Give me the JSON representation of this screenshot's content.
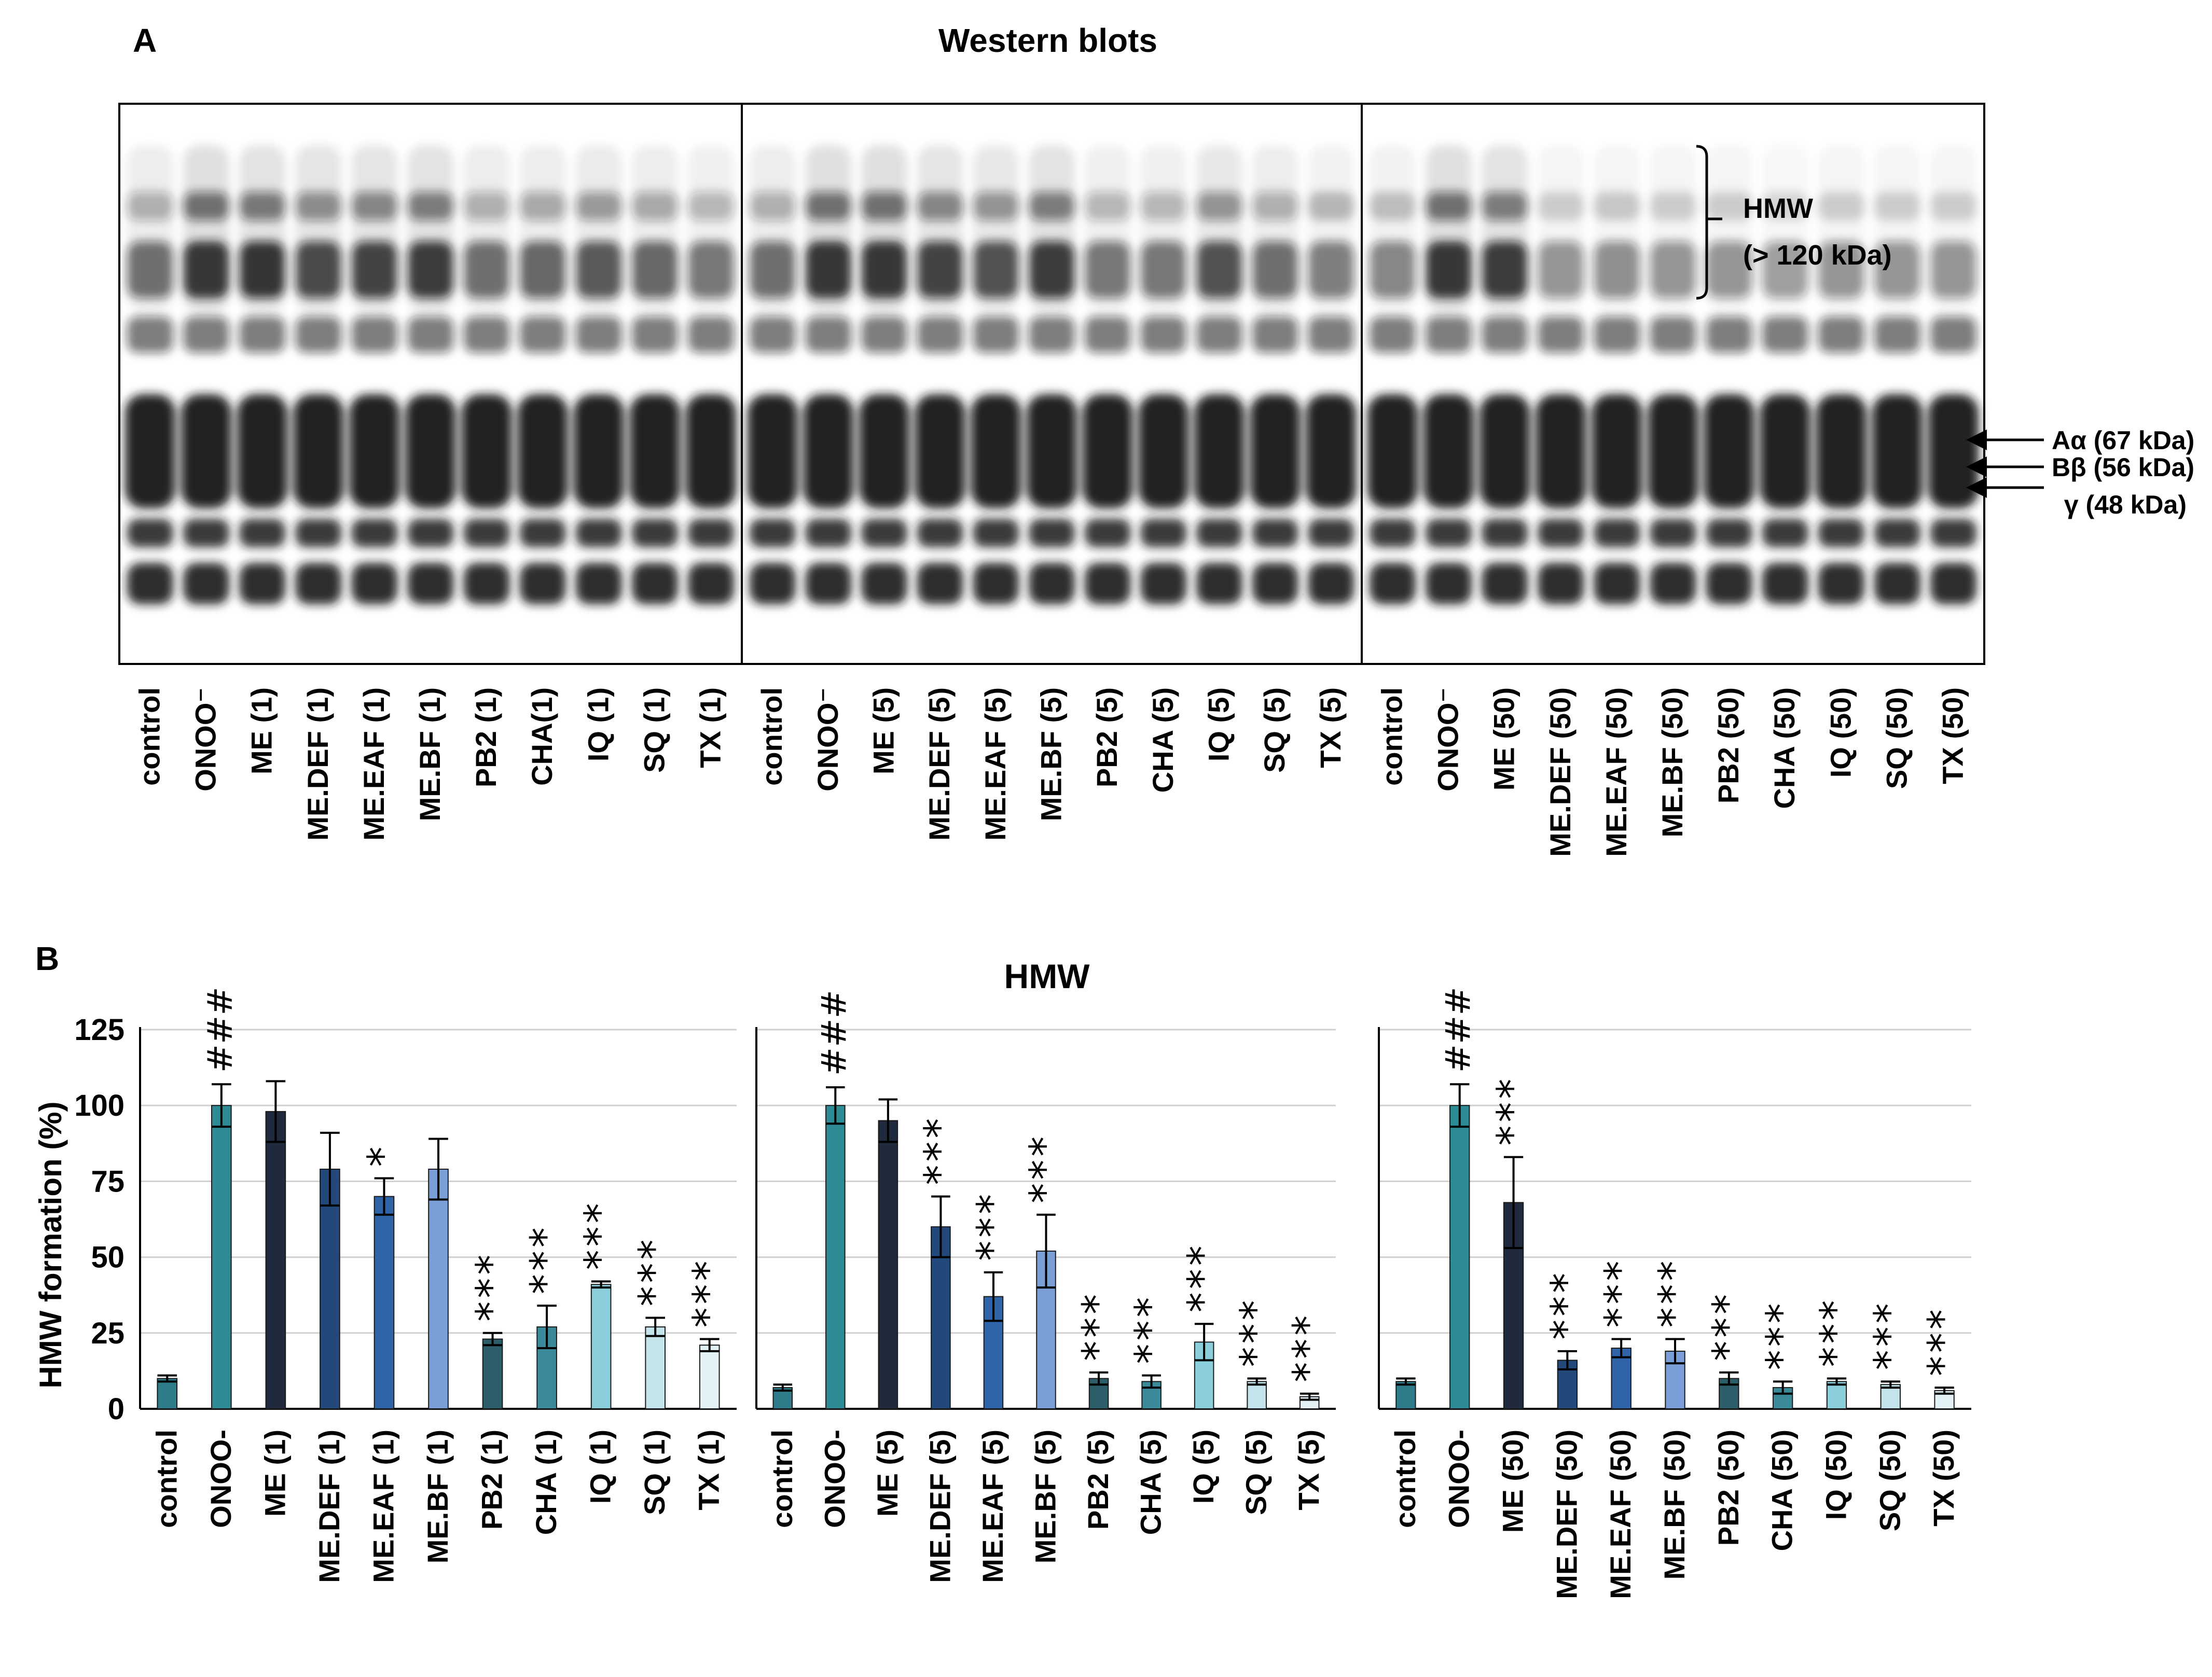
{
  "panel_a": {
    "label": "A",
    "title": "Western blots",
    "hmw_label": "HMW",
    "hmw_range": "(> 120 kDa)",
    "band_labels": [
      "Aα (67 kDa)",
      "Bβ (56 kDa)",
      "γ (48 kDa)"
    ],
    "blots": [
      {
        "lane_labels": [
          "control",
          "ONOO⁻",
          "ME (1)",
          "ME.DEF (1)",
          "ME.EAF (1)",
          "ME.BF (1)",
          "PB2 (1)",
          "CHA(1)",
          "IQ (1)",
          "SQ (1)",
          "TX (1)"
        ],
        "hmw_intensity": [
          0.55,
          1.0,
          0.95,
          0.8,
          0.85,
          0.9,
          0.55,
          0.6,
          0.7,
          0.6,
          0.5
        ]
      },
      {
        "lane_labels": [
          "control",
          "ONOO⁻",
          "ME (5)",
          "ME.DEF (5)",
          "ME.EAF (5)",
          "ME.BF (5)",
          "PB2 (5)",
          "CHA (5)",
          "IQ (5)",
          "SQ (5)",
          "TX (5)"
        ],
        "hmw_intensity": [
          0.55,
          1.0,
          1.0,
          0.85,
          0.75,
          0.9,
          0.5,
          0.5,
          0.75,
          0.55,
          0.45
        ]
      },
      {
        "lane_labels": [
          "control",
          "ONOO⁻",
          "ME (50)",
          "ME.DEF (50)",
          "ME.EAF (50)",
          "ME.BF (50)",
          "PB2 (50)",
          "CHA (50)",
          "IQ (50)",
          "SQ (50)",
          "TX (50)"
        ],
        "hmw_intensity": [
          0.4,
          1.0,
          0.9,
          0.3,
          0.35,
          0.3,
          0.3,
          0.25,
          0.3,
          0.3,
          0.3
        ]
      }
    ]
  },
  "panel_b": {
    "label": "B",
    "title": "HMW",
    "colors": [
      "#2e7b8a",
      "#2e8a95",
      "#202a3d",
      "#23497a",
      "#2f64a8",
      "#7a9fd8",
      "#2c5e6a",
      "#3a8a9a",
      "#8ccfdc",
      "#c4e4ec",
      "#e2f1f6"
    ]
  },
  "chart_data": [
    {
      "type": "bar",
      "ylabel": "HMW formation (%)",
      "ylim": [
        0,
        125
      ],
      "yticks": [
        "0",
        "25",
        "50",
        "75",
        "100",
        "125"
      ],
      "grid": true,
      "categories": [
        "control",
        "ONOO-",
        "ME (1)",
        "ME.DEF (1)",
        "ME.EAF (1)",
        "ME.BF (1)",
        "PB2 (1)",
        "CHA (1)",
        "IQ (1)",
        "SQ (1)",
        "TX (1)"
      ],
      "values": [
        10,
        100,
        98,
        79,
        70,
        79,
        23,
        27,
        41,
        27,
        21
      ],
      "errors": [
        1,
        7,
        10,
        12,
        6,
        10,
        2,
        7,
        1,
        3,
        2
      ],
      "annotations": [
        "",
        "###",
        "",
        "",
        "*",
        "",
        "***",
        "***",
        "***",
        "***",
        "***"
      ]
    },
    {
      "type": "bar",
      "ylim": [
        0,
        125
      ],
      "grid": true,
      "categories": [
        "control",
        "ONOO-",
        "ME (5)",
        "ME.DEF (5)",
        "ME.EAF (5)",
        "ME.BF (5)",
        "PB2 (5)",
        "CHA (5)",
        "IQ (5)",
        "SQ (5)",
        "TX (5)"
      ],
      "values": [
        7,
        100,
        95,
        60,
        37,
        52,
        10,
        9,
        22,
        9,
        4
      ],
      "errors": [
        1,
        6,
        7,
        10,
        8,
        12,
        2,
        2,
        6,
        1,
        1
      ],
      "annotations": [
        "",
        "###",
        "",
        "***",
        "***",
        "***",
        "***",
        "***",
        "***",
        "***",
        "***"
      ]
    },
    {
      "type": "bar",
      "ylim": [
        0,
        125
      ],
      "grid": true,
      "categories": [
        "control",
        "ONOO-",
        "ME (50)",
        "ME.DEF (50)",
        "ME.EAF (50)",
        "ME.BF (50)",
        "PB2 (50)",
        "CHA (50)",
        "IQ (50)",
        "SQ (50)",
        "TX (50)"
      ],
      "values": [
        9,
        100,
        68,
        16,
        20,
        19,
        10,
        7,
        9,
        8,
        6
      ],
      "errors": [
        1,
        7,
        15,
        3,
        3,
        4,
        2,
        2,
        1,
        1,
        1
      ],
      "annotations": [
        "",
        "###",
        "***",
        "***",
        "***",
        "***",
        "***",
        "***",
        "***",
        "***",
        "***"
      ]
    }
  ]
}
